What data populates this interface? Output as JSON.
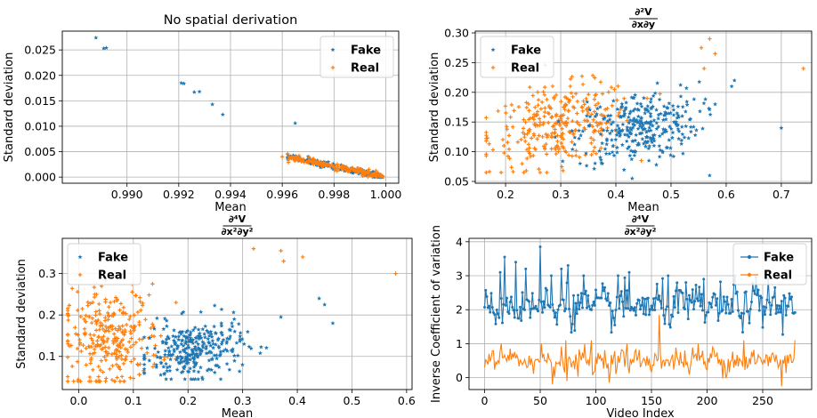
{
  "colors": {
    "fake": "#1f77b4",
    "real": "#ff7f0e"
  },
  "chart_data": [
    {
      "type": "scatter",
      "title": "No spatial derivation",
      "xlabel": "Mean",
      "ylabel": "Standard deviation",
      "xlim": [
        0.9875,
        1.0005
      ],
      "ylim": [
        -0.0012,
        0.0287
      ],
      "xticks": [
        "0.990",
        "0.992",
        "0.994",
        "0.996",
        "0.998",
        "1.000"
      ],
      "xtick_values": [
        0.99,
        0.992,
        0.994,
        0.996,
        0.998,
        1.0
      ],
      "yticks": [
        "0.000",
        "0.005",
        "0.010",
        "0.015",
        "0.020",
        "0.025"
      ],
      "ytick_values": [
        0.0,
        0.005,
        0.01,
        0.015,
        0.02,
        0.025
      ],
      "grid": true,
      "legend_position": "upper right",
      "series": [
        {
          "name": "Fake",
          "marker": "star",
          "points": [
            [
              0.9888,
              0.0274
            ],
            [
              0.9891,
              0.0253
            ],
            [
              0.9892,
              0.0254
            ],
            [
              0.9921,
              0.0185
            ],
            [
              0.9922,
              0.0184
            ],
            [
              0.9926,
              0.0167
            ],
            [
              0.9928,
              0.0168
            ],
            [
              0.9933,
              0.0143
            ],
            [
              0.9937,
              0.0123
            ],
            [
              0.9965,
              0.0106
            ],
            [
              0.9962,
              0.0038
            ],
            [
              0.997,
              0.004
            ],
            [
              0.9975,
              0.003
            ],
            [
              0.998,
              0.0022
            ],
            [
              0.9984,
              0.0018
            ],
            [
              0.9988,
              0.0014
            ],
            [
              0.9991,
              0.001
            ],
            [
              0.9994,
              0.0007
            ],
            [
              0.9996,
              0.0005
            ],
            [
              0.9998,
              0.0004
            ]
          ]
        },
        {
          "name": "Real",
          "marker": "plus",
          "points": [
            [
              0.996,
              0.004
            ],
            [
              0.9966,
              0.0034
            ],
            [
              0.9972,
              0.0028
            ],
            [
              0.9978,
              0.0025
            ],
            [
              0.9983,
              0.0021
            ],
            [
              0.9987,
              0.0018
            ],
            [
              0.999,
              0.0015
            ],
            [
              0.9993,
              0.0011
            ],
            [
              0.9996,
              0.0008
            ],
            [
              0.9998,
              0.0005
            ]
          ]
        }
      ]
    },
    {
      "type": "scatter",
      "title": "∂²V / ∂x∂y",
      "xlabel": "Mean",
      "ylabel": "Standard deviation",
      "xlim": [
        0.145,
        0.755
      ],
      "ylim": [
        0.047,
        0.303
      ],
      "xticks": [
        "0.2",
        "0.3",
        "0.4",
        "0.5",
        "0.6",
        "0.7"
      ],
      "xtick_values": [
        0.2,
        0.3,
        0.4,
        0.5,
        0.6,
        0.7
      ],
      "yticks": [
        "0.05",
        "0.10",
        "0.15",
        "0.20",
        "0.25",
        "0.30"
      ],
      "ytick_values": [
        0.05,
        0.1,
        0.15,
        0.2,
        0.25,
        0.3
      ],
      "grid": true,
      "legend_position": "upper left",
      "series": [
        {
          "name": "Fake",
          "marker": "star",
          "cloud": {
            "n": 300,
            "cx": 0.44,
            "sx": 0.055,
            "cy": 0.14,
            "sy": 0.03,
            "xr": [
              0.29,
              0.61
            ],
            "yr": [
              0.055,
              0.26
            ]
          },
          "points": [
            [
              0.7,
              0.14
            ],
            [
              0.615,
              0.22
            ],
            [
              0.61,
              0.21
            ],
            [
              0.58,
              0.18
            ],
            [
              0.57,
              0.06
            ]
          ]
        },
        {
          "name": "Real",
          "marker": "plus",
          "cloud": {
            "n": 300,
            "cx": 0.3,
            "sx": 0.065,
            "cy": 0.145,
            "sy": 0.032,
            "xr": [
              0.165,
              0.48
            ],
            "yr": [
              0.065,
              0.29
            ]
          },
          "points": [
            [
              0.74,
              0.24
            ],
            [
              0.57,
              0.29
            ],
            [
              0.58,
              0.265
            ],
            [
              0.555,
              0.275
            ],
            [
              0.56,
              0.24
            ]
          ]
        }
      ]
    },
    {
      "type": "scatter",
      "title": "∂⁴V / ∂x²∂y²",
      "xlabel": "Mean",
      "ylabel": "Standard deviation",
      "xlim": [
        -0.03,
        0.61
      ],
      "ylim": [
        0.02,
        0.385
      ],
      "xticks": [
        "0.0",
        "0.1",
        "0.2",
        "0.3",
        "0.4",
        "0.5",
        "0.6"
      ],
      "xtick_values": [
        0.0,
        0.1,
        0.2,
        0.3,
        0.4,
        0.5,
        0.6
      ],
      "yticks": [
        "0.1",
        "0.2",
        "0.3"
      ],
      "ytick_values": [
        0.1,
        0.2,
        0.3
      ],
      "grid": true,
      "legend_position": "upper left",
      "series": [
        {
          "name": "Fake",
          "marker": "star",
          "cloud": {
            "n": 300,
            "cx": 0.21,
            "sx": 0.045,
            "cy": 0.115,
            "sy": 0.035,
            "xr": [
              0.12,
              0.37
            ],
            "yr": [
              0.045,
              0.25
            ]
          },
          "points": [
            [
              0.44,
              0.24
            ],
            [
              0.45,
              0.225
            ],
            [
              0.465,
              0.18
            ],
            [
              0.37,
              0.195
            ]
          ]
        },
        {
          "name": "Real",
          "marker": "plus",
          "cloud": {
            "n": 300,
            "cx": 0.06,
            "sx": 0.045,
            "cy": 0.14,
            "sy": 0.06,
            "xr": [
              -0.02,
              0.33
            ],
            "yr": [
              0.04,
              0.375
            ]
          },
          "points": [
            [
              0.58,
              0.3
            ],
            [
              0.41,
              0.34
            ],
            [
              0.37,
              0.355
            ],
            [
              0.375,
              0.33
            ],
            [
              0.32,
              0.36
            ]
          ]
        }
      ]
    },
    {
      "type": "line",
      "title": "∂⁴V / ∂x²∂y²",
      "xlabel": "Video Index",
      "ylabel": "Inverse Coefficient of variation",
      "xlim": [
        -14,
        294
      ],
      "ylim": [
        -0.35,
        4.1
      ],
      "xticks": [
        "0",
        "50",
        "100",
        "150",
        "200",
        "250"
      ],
      "xtick_values": [
        0,
        50,
        100,
        150,
        200,
        250
      ],
      "yticks": [
        "0",
        "1",
        "2",
        "3",
        "4"
      ],
      "ytick_values": [
        0,
        1,
        2,
        3,
        4
      ],
      "grid": true,
      "legend_position": "upper right",
      "series": [
        {
          "name": "Fake",
          "n": 280,
          "base": 2.1,
          "noise": 0.45,
          "spikes": [
            [
              50,
              3.85
            ],
            [
              18,
              3.55
            ],
            [
              14,
              3.1
            ],
            [
              28,
              3.4
            ],
            [
              37,
              3.2
            ],
            [
              60,
              3.0
            ],
            [
              69,
              3.2
            ],
            [
              75,
              3.3
            ],
            [
              89,
              3.0
            ],
            [
              120,
              3.0
            ],
            [
              130,
              3.1
            ],
            [
              156,
              2.3
            ],
            [
              165,
              3.0
            ],
            [
              181,
              2.8
            ],
            [
              197,
              2.9
            ],
            [
              225,
              3.0
            ],
            [
              244,
              2.95
            ],
            [
              255,
              2.9
            ],
            [
              273,
              2.1
            ]
          ]
        },
        {
          "name": "Real",
          "n": 280,
          "base": 0.5,
          "noise": 0.3,
          "spikes": [
            [
              15,
              1.0
            ],
            [
              51,
              1.0
            ],
            [
              73,
              1.1
            ],
            [
              96,
              1.1
            ],
            [
              128,
              1.0
            ],
            [
              157,
              1.85
            ],
            [
              192,
              1.0
            ],
            [
              205,
              0.9
            ],
            [
              233,
              1.1
            ],
            [
              279,
              1.1
            ],
            [
              61,
              -0.2
            ],
            [
              74,
              -0.1
            ],
            [
              267,
              -0.25
            ]
          ]
        }
      ]
    }
  ]
}
